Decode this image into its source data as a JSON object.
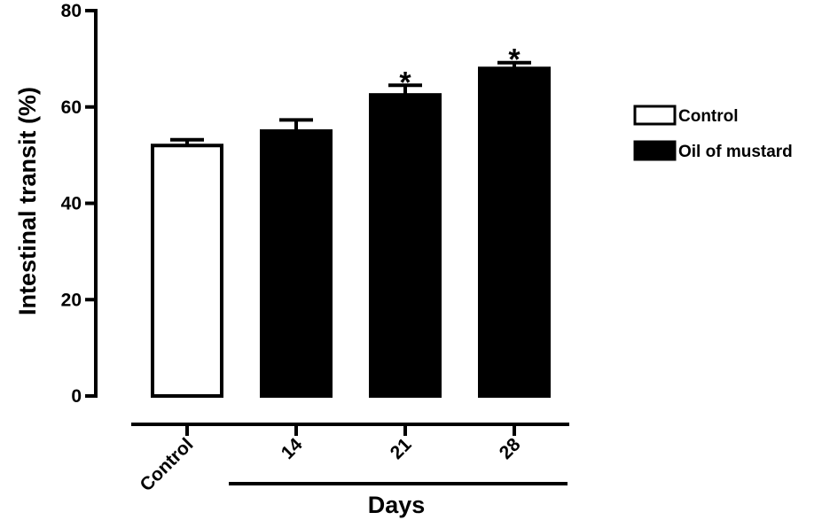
{
  "chart_data": {
    "type": "bar",
    "title": "",
    "xlabel": "Days",
    "ylabel": "Intestinal transit (%)",
    "ylim": [
      0,
      80
    ],
    "yticks": [
      0,
      20,
      40,
      60,
      80
    ],
    "yticks_labels": [
      "0",
      "20",
      "40",
      "60",
      "80"
    ],
    "categories": [
      "Control",
      "14",
      "21",
      "28"
    ],
    "values": [
      52,
      55,
      62.5,
      68
    ],
    "errors": [
      1.2,
      2.3,
      2.0,
      1.2
    ],
    "group": [
      "Control",
      "Oil of mustard",
      "Oil of mustard",
      "Oil of mustard"
    ],
    "significance": [
      "",
      "",
      "*",
      "*"
    ],
    "legend": {
      "position": "right",
      "entries": [
        {
          "name": "Control",
          "fill": "#ffffff"
        },
        {
          "name": "Oil of mustard",
          "fill": "#000000"
        }
      ]
    },
    "colors": {
      "control": "#ffffff",
      "treatment": "#000000",
      "stroke": "#000000"
    }
  }
}
